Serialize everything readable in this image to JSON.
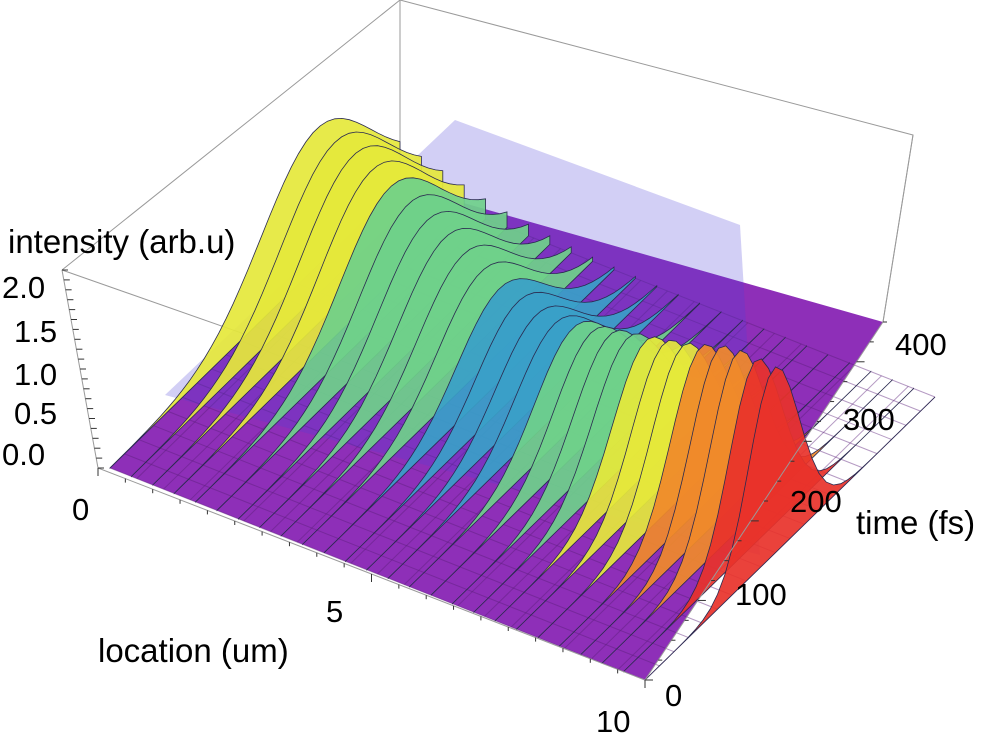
{
  "chart_data": {
    "type": "surface3d",
    "title": "",
    "axes": {
      "x": {
        "label": "location (um)",
        "range": [
          0,
          10
        ],
        "ticks": [
          "0",
          "5",
          "10"
        ]
      },
      "y": {
        "label": "time (fs)",
        "range": [
          0,
          450
        ],
        "ticks": [
          "0",
          "100",
          "200",
          "300",
          "400"
        ]
      },
      "z": {
        "label": "intensity (arb.u)",
        "range": [
          0,
          2.2
        ],
        "ticks": [
          "0.0",
          "0.5",
          "1.0",
          "1.5",
          "2.0"
        ]
      }
    },
    "colormap": [
      "#8a2bb5",
      "#6a2fe0",
      "#3f4fe0",
      "#3aa0c8",
      "#6fd08a",
      "#e5e83b",
      "#f08a2a",
      "#e8322a"
    ],
    "description_points": {
      "pulse_arrival_time_fs": 200,
      "initial_peak_intensity": 1.55,
      "max_peak_intensity": 2.1,
      "max_peak_location_um": 9.5
    },
    "sample_ridge": {
      "location_um": [
        0,
        1,
        2,
        3,
        4,
        5,
        6,
        7,
        8,
        9,
        10
      ],
      "peak_intensity": [
        1.55,
        1.5,
        1.35,
        1.2,
        1.05,
        1.0,
        1.2,
        1.45,
        1.7,
        2.0,
        2.1
      ]
    }
  }
}
